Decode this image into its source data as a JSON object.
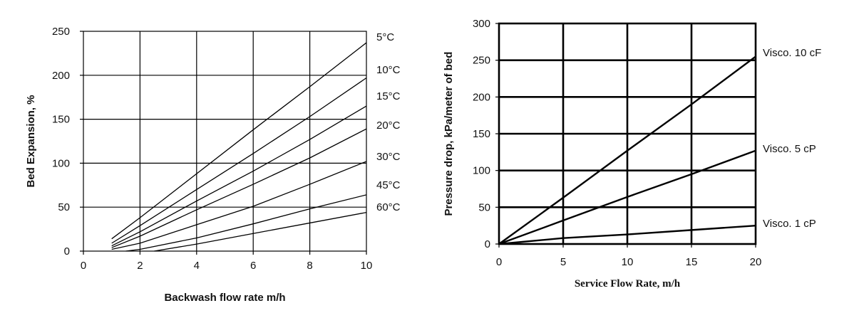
{
  "chart_data": [
    {
      "type": "line",
      "title": "",
      "xlabel": "Backwash flow rate m/h",
      "ylabel": "Bed Expansion, %",
      "xlim": [
        0,
        10
      ],
      "ylim": [
        0,
        250
      ],
      "xticks": [
        "0",
        "2",
        "4",
        "6",
        "8",
        "10"
      ],
      "yticks": [
        "0",
        "50",
        "100",
        "150",
        "200",
        "250"
      ],
      "grid": true,
      "series": [
        {
          "name": "5°C",
          "x": [
            1,
            2,
            4,
            6,
            8,
            10
          ],
          "y": [
            14,
            38,
            88,
            138,
            187,
            237
          ]
        },
        {
          "name": "10°C",
          "x": [
            1,
            2,
            4,
            6,
            8,
            10
          ],
          "y": [
            9,
            29,
            70,
            111,
            153,
            197
          ]
        },
        {
          "name": "15°C",
          "x": [
            1,
            2,
            4,
            6,
            8,
            10
          ],
          "y": [
            6,
            22,
            57,
            91,
            127,
            165
          ]
        },
        {
          "name": "20°C",
          "x": [
            1,
            2,
            4,
            6,
            8,
            10
          ],
          "y": [
            4,
            17,
            47,
            76,
            106,
            139
          ]
        },
        {
          "name": "30°C",
          "x": [
            1,
            2,
            4,
            6,
            8,
            10
          ],
          "y": [
            2,
            9,
            30,
            51,
            76,
            102
          ]
        },
        {
          "name": "45°C",
          "x": [
            1.5,
            2,
            4,
            6,
            8,
            10
          ],
          "y": [
            0,
            2,
            15,
            31,
            48,
            64
          ]
        },
        {
          "name": "60°C",
          "x": [
            2.5,
            4,
            6,
            8,
            10
          ],
          "y": [
            0,
            8,
            20,
            32,
            44
          ]
        }
      ]
    },
    {
      "type": "line",
      "title": "",
      "xlabel": "Service Flow Rate, m/h",
      "ylabel": "Pressure drop, kPa/meter of bed",
      "xlim": [
        0,
        20
      ],
      "ylim": [
        0,
        300
      ],
      "xticks": [
        "0",
        "5",
        "10",
        "15",
        "20"
      ],
      "yticks": [
        "0",
        "50",
        "100",
        "150",
        "200",
        "250",
        "300"
      ],
      "grid": true,
      "series": [
        {
          "name": "Visco. 10 cF",
          "x": [
            0,
            5,
            10,
            15,
            20
          ],
          "y": [
            0,
            63,
            127,
            190,
            255
          ]
        },
        {
          "name": "Visco. 5 cP",
          "x": [
            0,
            5,
            10,
            15,
            20
          ],
          "y": [
            0,
            32,
            64,
            95,
            127
          ]
        },
        {
          "name": "Visco. 1 cP",
          "x": [
            0,
            5,
            10,
            15,
            20
          ],
          "y": [
            0,
            8,
            13,
            19,
            25
          ]
        }
      ]
    }
  ]
}
